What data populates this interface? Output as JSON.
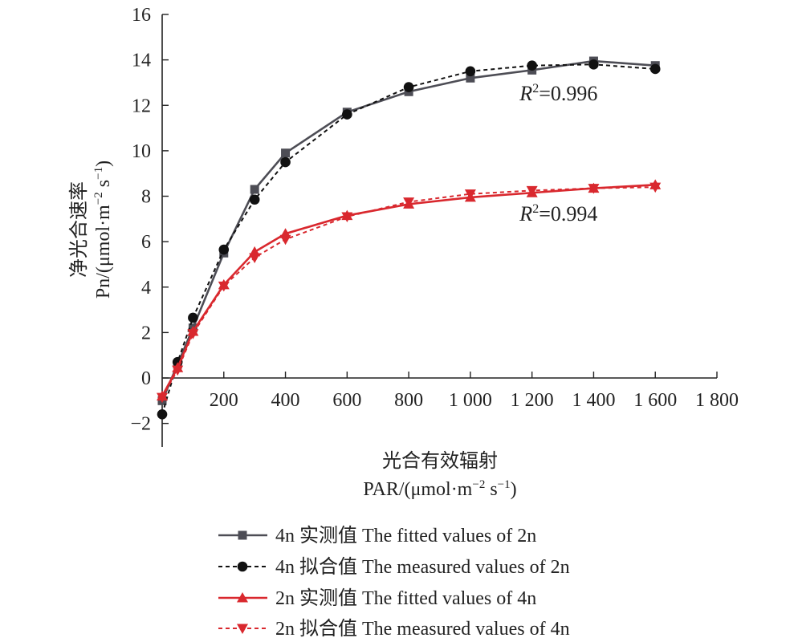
{
  "chart_data": {
    "type": "line",
    "xlabel_cn": "光合有效辐射",
    "xlabel_unit": {
      "prefix": "PAR/(μmol·m",
      "sup1": "−2",
      "mid": " s",
      "sup2": "−1",
      "suffix": ")"
    },
    "ylabel_cn": "净光合速率",
    "ylabel_unit": {
      "prefix": "Pn/(μmol·m",
      "sup1": "−2",
      "mid": " s",
      "sup2": "−1",
      "suffix": ")"
    },
    "xlim": [
      0,
      1800
    ],
    "ylim": [
      -3,
      16
    ],
    "x_ticks": [
      200,
      400,
      600,
      800,
      1000,
      1200,
      1400,
      1600,
      1800
    ],
    "x_tick_labels": [
      "200",
      "400",
      "600",
      "800",
      "1 000",
      "1 200",
      "1 400",
      "1 600",
      "1 800"
    ],
    "y_ticks": [
      -2,
      0,
      2,
      4,
      6,
      8,
      10,
      12,
      14,
      16
    ],
    "y_tick_labels": [
      "−2",
      "0",
      "2",
      "4",
      "6",
      "8",
      "10",
      "12",
      "14",
      "16"
    ],
    "grid": false,
    "legend_position": "bottom",
    "series": [
      {
        "name": "4n 实测值 The fitted values of 2n",
        "color": "#4d4d55",
        "marker": "square",
        "dash": "solid",
        "x": [
          0,
          50,
          100,
          200,
          300,
          400,
          600,
          800,
          1000,
          1200,
          1400,
          1600
        ],
        "y": [
          -1.0,
          0.6,
          2.2,
          5.5,
          8.3,
          9.9,
          11.7,
          12.6,
          13.2,
          13.55,
          13.95,
          13.75
        ]
      },
      {
        "name": "4n 拟合值 The measured values of 2n",
        "color": "#111111",
        "marker": "circle",
        "dash": "dashed",
        "x": [
          0,
          50,
          100,
          200,
          300,
          400,
          600,
          800,
          1000,
          1200,
          1400,
          1600
        ],
        "y": [
          -1.6,
          0.7,
          2.65,
          5.65,
          7.85,
          9.5,
          11.6,
          12.8,
          13.5,
          13.75,
          13.8,
          13.6
        ]
      },
      {
        "name": "2n 实测值 The fitted values of 4n",
        "color": "#d9282e",
        "marker": "triangle-up",
        "dash": "solid",
        "x": [
          0,
          50,
          100,
          200,
          300,
          400,
          600,
          800,
          1000,
          1200,
          1400,
          1600
        ],
        "y": [
          -0.8,
          0.45,
          2.05,
          4.1,
          5.55,
          6.35,
          7.15,
          7.65,
          7.95,
          8.15,
          8.35,
          8.5
        ]
      },
      {
        "name": "2n 拟合值 The measured values of 4n",
        "color": "#d9282e",
        "marker": "triangle-down",
        "dash": "dashed",
        "x": [
          0,
          50,
          100,
          200,
          300,
          400,
          600,
          800,
          1000,
          1200,
          1400,
          1600
        ],
        "y": [
          -0.85,
          0.35,
          1.95,
          4.05,
          5.3,
          6.1,
          7.1,
          7.75,
          8.1,
          8.25,
          8.35,
          8.4
        ]
      }
    ],
    "annotations": [
      {
        "text_r": "R",
        "text_sup": "2",
        "text_val": "=0.996",
        "x": 1160,
        "y": 12.5
      },
      {
        "text_r": "R",
        "text_sup": "2",
        "text_val": "=0.994",
        "x": 1160,
        "y": 7.2
      }
    ]
  }
}
